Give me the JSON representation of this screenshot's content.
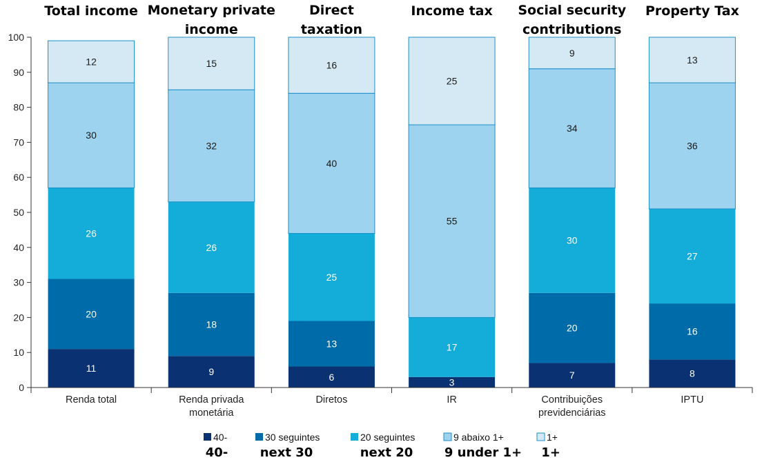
{
  "chart_data": {
    "type": "bar",
    "stacked": true,
    "categories": [
      "Renda total",
      "Renda privada monetária",
      "Diretos",
      "IR",
      "Contribuições previdenciárias",
      "IPTU"
    ],
    "category_lines": [
      [
        "Renda total"
      ],
      [
        "Renda privada",
        "monetária"
      ],
      [
        "Diretos"
      ],
      [
        "IR"
      ],
      [
        "Contribuições",
        "previdenciárias"
      ],
      [
        "IPTU"
      ]
    ],
    "english_titles": [
      [
        "Total income"
      ],
      [
        "Monetary private",
        "income"
      ],
      [
        "Direct",
        "taxation"
      ],
      [
        "Income tax"
      ],
      [
        "Social security",
        "contributions"
      ],
      [
        "Property Tax"
      ]
    ],
    "series": [
      {
        "name": "40-",
        "english": "40-",
        "color": "#0a3172",
        "values": [
          11,
          9,
          6,
          3,
          7,
          8
        ]
      },
      {
        "name": "30 seguintes",
        "english": "next 30",
        "color": "#006ba9",
        "values": [
          20,
          18,
          13,
          0,
          20,
          16
        ]
      },
      {
        "name": "20 seguintes",
        "english": "next 20",
        "color": "#14acd8",
        "values": [
          26,
          26,
          25,
          17,
          30,
          27
        ]
      },
      {
        "name": "9 abaixo 1+",
        "english": "9 under 1+",
        "color": "#9dd3ee",
        "values": [
          30,
          32,
          40,
          55,
          34,
          36
        ]
      },
      {
        "name": "1+",
        "english": "1+",
        "color": "#d5e9f4",
        "values": [
          12,
          15,
          16,
          25,
          9,
          13
        ]
      }
    ],
    "ylim": [
      0,
      100
    ],
    "yticks": [
      0,
      10,
      20,
      30,
      40,
      50,
      60,
      70,
      80,
      90,
      100
    ],
    "grid": false,
    "legend_position": "bottom"
  }
}
